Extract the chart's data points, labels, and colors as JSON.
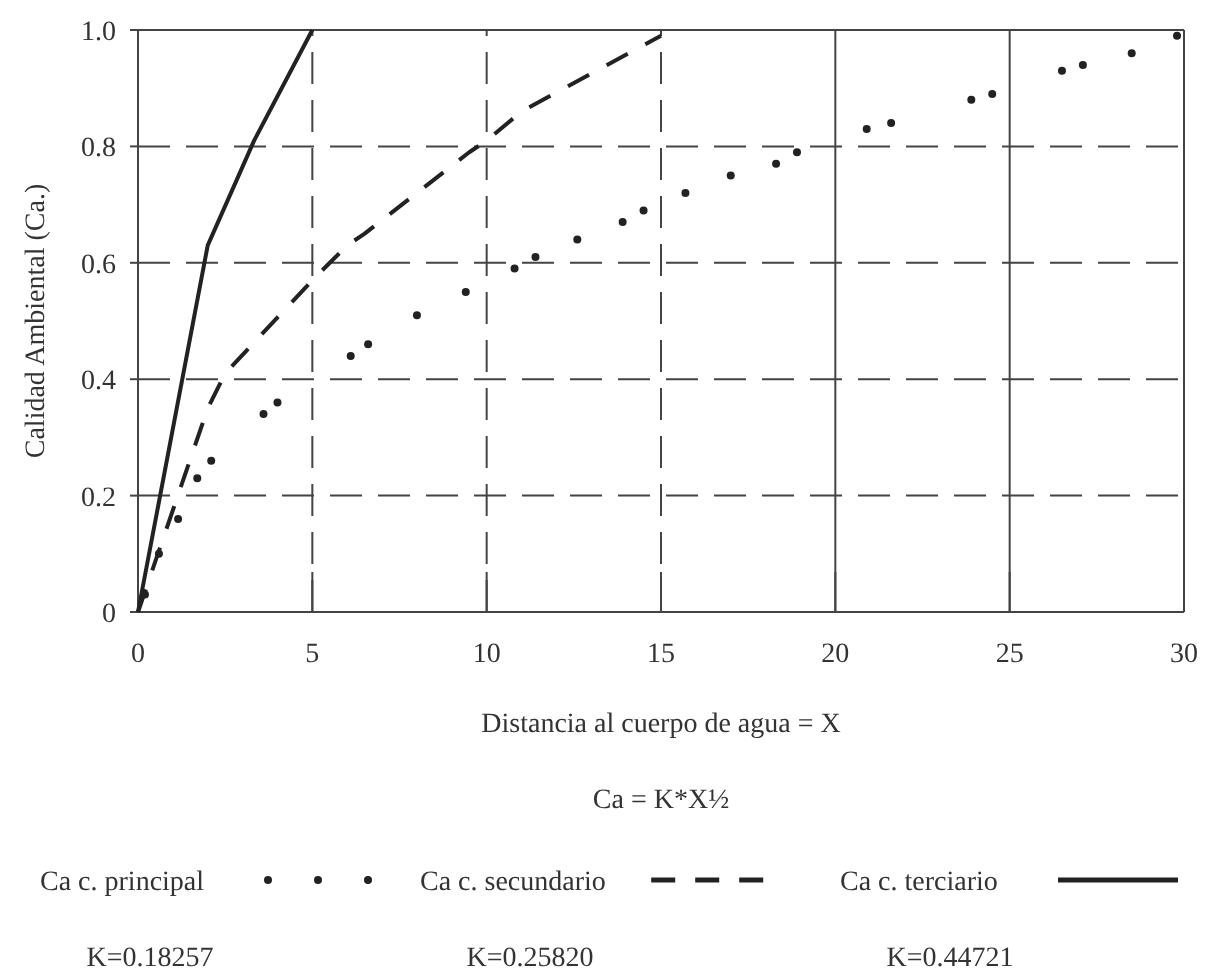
{
  "chart_data": {
    "type": "line",
    "xlabel": "Distancia al cuerpo de agua = X",
    "ylabel": "Calidad Ambiental (Ca.)",
    "annotations": [
      "Ca = K*X½",
      "K=0.18257",
      "K=0.25820",
      "K=0.44721"
    ],
    "xlim": [
      0,
      30
    ],
    "xticks": [
      0,
      5,
      10,
      15,
      20,
      25,
      30
    ],
    "ylim": [
      0,
      1
    ],
    "yticks": [
      0,
      0.2,
      0.4,
      0.6,
      0.8,
      {
        "value": 1,
        "label": "1.0"
      }
    ],
    "grid": true,
    "legend": "bottom",
    "series": [
      {
        "name": "Ca c. principal",
        "type": "scatter",
        "marker": "circle",
        "color": "#222222",
        "x": [
          0.2,
          0.6,
          1.15,
          1.7,
          2.1,
          3.6,
          4.0,
          6.1,
          6.6,
          8.0,
          9.4,
          10.8,
          11.4,
          12.6,
          13.9,
          14.5,
          15.7,
          17.0,
          18.3,
          18.9,
          20.9,
          21.6,
          23.9,
          24.5,
          26.5,
          27.1,
          28.5,
          29.8
        ],
        "values": [
          0.03,
          0.1,
          0.16,
          0.23,
          0.26,
          0.34,
          0.36,
          0.44,
          0.46,
          0.51,
          0.55,
          0.59,
          0.61,
          0.64,
          0.67,
          0.69,
          0.72,
          0.75,
          0.77,
          0.79,
          0.83,
          0.84,
          0.88,
          0.89,
          0.93,
          0.94,
          0.96,
          0.99
        ]
      },
      {
        "name": "Ca c. secundario",
        "line_style": "dashed",
        "color": "#222222",
        "x": [
          0,
          2,
          2.5,
          5,
          6,
          6.5,
          9.5,
          10,
          11,
          15
        ],
        "values": [
          0,
          0.35,
          0.41,
          0.57,
          0.63,
          0.65,
          0.79,
          0.81,
          0.86,
          0.99
        ]
      },
      {
        "name": "Ca c. terciario",
        "line_style": "solid",
        "color": "#222222",
        "x": [
          0,
          2,
          3.33,
          5
        ],
        "values": [
          0,
          0.63,
          0.81,
          1.0
        ]
      }
    ]
  }
}
